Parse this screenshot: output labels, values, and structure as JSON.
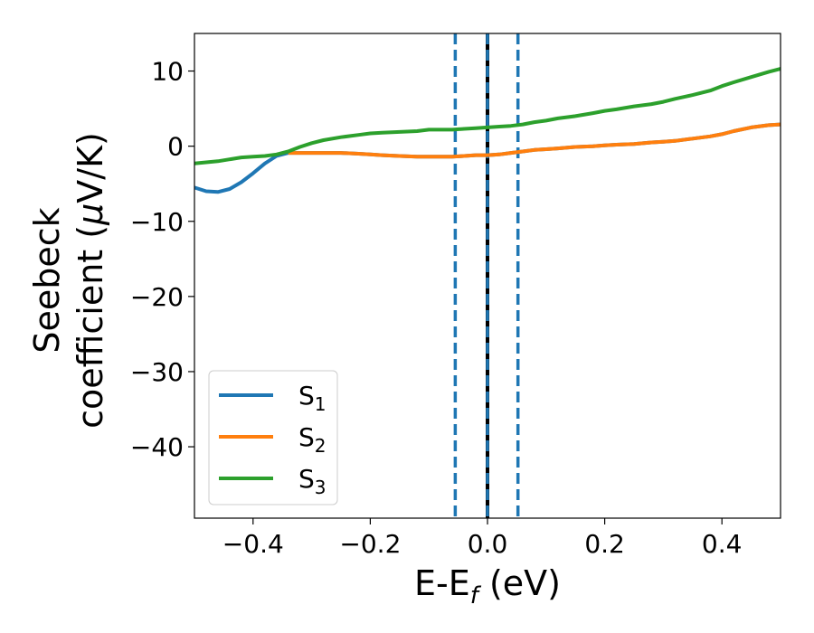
{
  "chart_data": {
    "type": "line",
    "title": "",
    "xlabel": {
      "main": "E-E",
      "sub": "f",
      "suffix": " (eV)"
    },
    "ylabel": {
      "line1": "Seebeck",
      "line2": "coefficient  (",
      "mu": "μ",
      "unit": "V/K)"
    },
    "xlim": [
      -0.5,
      0.5
    ],
    "ylim": [
      -49.5,
      15
    ],
    "xticks": [
      -0.4,
      -0.2,
      0.0,
      0.2,
      0.4
    ],
    "xtick_labels": [
      "−0.4",
      "−0.2",
      "0.0",
      "0.2",
      "0.4"
    ],
    "yticks": [
      -40,
      -30,
      -20,
      -10,
      0,
      10
    ],
    "ytick_labels": [
      "−40",
      "−30",
      "−20",
      "−10",
      "0",
      "10"
    ],
    "grid": false,
    "legend_position": "lower-left",
    "vlines": [
      {
        "x": 0.0,
        "style": "solid",
        "color": "#000000"
      },
      {
        "x": -0.055,
        "style": "dashed",
        "color": "#1f77b4"
      },
      {
        "x": 0.0,
        "style": "dashed",
        "color": "#1f77b4"
      },
      {
        "x": 0.052,
        "style": "dashed",
        "color": "#1f77b4"
      }
    ],
    "series": [
      {
        "name": "S",
        "sub": "1",
        "color": "#1f77b4",
        "x": [
          -0.5,
          -0.48,
          -0.46,
          -0.44,
          -0.42,
          -0.4,
          -0.38,
          -0.36,
          -0.34,
          -0.32,
          -0.3,
          -0.28,
          -0.25,
          -0.22,
          -0.2,
          -0.18,
          -0.15,
          -0.12,
          -0.1,
          -0.08,
          -0.06,
          -0.04,
          -0.02,
          0.0,
          0.02,
          0.04,
          0.06,
          0.08,
          0.1,
          0.12,
          0.15,
          0.18,
          0.2,
          0.22,
          0.25,
          0.28,
          0.3,
          0.32,
          0.35,
          0.38,
          0.4,
          0.42,
          0.45,
          0.48,
          0.5
        ],
        "y": [
          -5.5,
          -6.0,
          -6.1,
          -5.7,
          -4.8,
          -3.6,
          -2.3,
          -1.3,
          -0.9,
          -0.9,
          -0.9,
          -0.9,
          -0.9,
          -1.0,
          -1.1,
          -1.2,
          -1.3,
          -1.4,
          -1.4,
          -1.4,
          -1.4,
          -1.3,
          -1.2,
          -1.2,
          -1.1,
          -0.9,
          -0.7,
          -0.5,
          -0.4,
          -0.3,
          -0.1,
          0.0,
          0.1,
          0.2,
          0.3,
          0.5,
          0.6,
          0.7,
          1.0,
          1.3,
          1.6,
          2.0,
          2.5,
          2.8,
          2.9
        ]
      },
      {
        "name": "S",
        "sub": "2",
        "color": "#ff7f0e",
        "x": [
          -0.34,
          -0.32,
          -0.3,
          -0.28,
          -0.25,
          -0.22,
          -0.2,
          -0.18,
          -0.15,
          -0.12,
          -0.1,
          -0.08,
          -0.06,
          -0.04,
          -0.02,
          0.0,
          0.02,
          0.04,
          0.06,
          0.08,
          0.1,
          0.12,
          0.15,
          0.18,
          0.2,
          0.22,
          0.25,
          0.28,
          0.3,
          0.32,
          0.35,
          0.38,
          0.4,
          0.42,
          0.45,
          0.48,
          0.5
        ],
        "y": [
          -0.9,
          -0.9,
          -0.9,
          -0.9,
          -0.9,
          -1.0,
          -1.1,
          -1.2,
          -1.3,
          -1.4,
          -1.4,
          -1.4,
          -1.4,
          -1.3,
          -1.2,
          -1.2,
          -1.1,
          -0.9,
          -0.7,
          -0.5,
          -0.4,
          -0.3,
          -0.1,
          0.0,
          0.1,
          0.2,
          0.3,
          0.5,
          0.6,
          0.7,
          1.0,
          1.3,
          1.6,
          2.0,
          2.5,
          2.8,
          2.9
        ]
      },
      {
        "name": "S",
        "sub": "3",
        "color": "#2ca02c",
        "x": [
          -0.5,
          -0.46,
          -0.42,
          -0.4,
          -0.38,
          -0.36,
          -0.34,
          -0.32,
          -0.3,
          -0.28,
          -0.25,
          -0.22,
          -0.2,
          -0.18,
          -0.15,
          -0.12,
          -0.1,
          -0.08,
          -0.06,
          -0.04,
          -0.02,
          0.0,
          0.02,
          0.04,
          0.06,
          0.08,
          0.1,
          0.12,
          0.15,
          0.18,
          0.2,
          0.22,
          0.25,
          0.28,
          0.3,
          0.32,
          0.35,
          0.38,
          0.4,
          0.42,
          0.45,
          0.48,
          0.5
        ],
        "y": [
          -2.3,
          -2.0,
          -1.5,
          -1.4,
          -1.3,
          -1.1,
          -0.7,
          -0.1,
          0.4,
          0.8,
          1.2,
          1.5,
          1.7,
          1.8,
          1.9,
          2.0,
          2.2,
          2.2,
          2.2,
          2.3,
          2.4,
          2.5,
          2.6,
          2.7,
          2.9,
          3.2,
          3.4,
          3.7,
          4.0,
          4.4,
          4.7,
          4.9,
          5.3,
          5.6,
          5.9,
          6.3,
          6.8,
          7.4,
          8.0,
          8.5,
          9.2,
          9.9,
          10.3
        ]
      }
    ]
  }
}
